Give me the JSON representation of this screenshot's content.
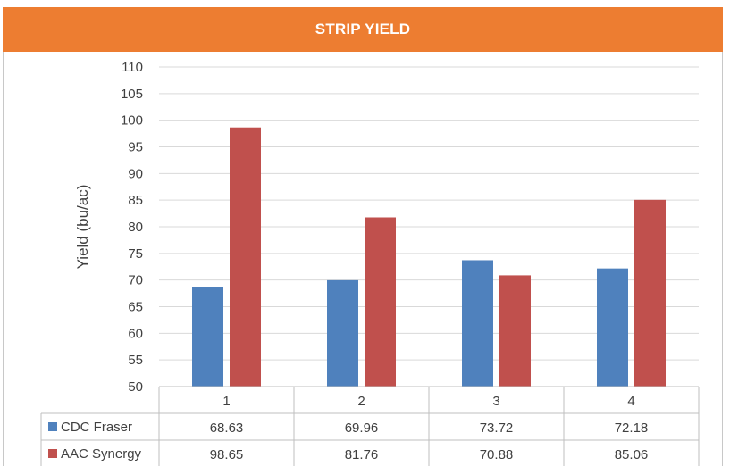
{
  "title": "STRIP YIELD",
  "chart_data": {
    "type": "bar",
    "title": "STRIP YIELD",
    "ylabel": "Yield (bu/ac)",
    "xlabel": "",
    "categories": [
      "1",
      "2",
      "3",
      "4"
    ],
    "ylim": [
      50,
      110
    ],
    "ytick_step": 5,
    "grid": true,
    "legend": "data-table-below",
    "series": [
      {
        "name": "CDC Fraser",
        "color": "#4f81bd",
        "values": [
          68.63,
          69.96,
          73.72,
          72.18
        ],
        "labels": [
          "68.63",
          "69.96",
          "73.72",
          "72.18"
        ]
      },
      {
        "name": "AAC Synergy",
        "color": "#c0504d",
        "values": [
          98.65,
          81.76,
          70.88,
          85.06
        ],
        "labels": [
          "98.65",
          "81.76",
          "70.88",
          "85.06"
        ]
      }
    ]
  },
  "colors": {
    "title_bar": "#ed7d31",
    "grid": "#d9d9d9",
    "table_border": "#bfbfbf"
  }
}
